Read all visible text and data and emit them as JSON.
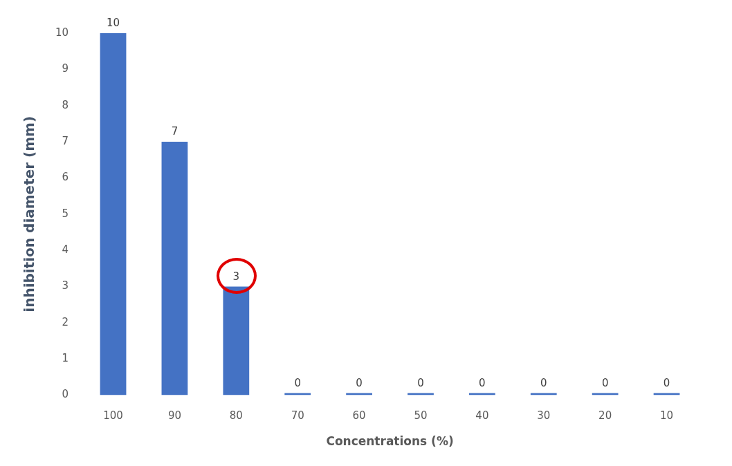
{
  "chart_data": {
    "type": "bar",
    "categories": [
      "100",
      "90",
      "80",
      "70",
      "60",
      "50",
      "40",
      "30",
      "20",
      "10"
    ],
    "values": [
      10,
      7,
      3,
      0,
      0,
      0,
      0,
      0,
      0,
      0
    ],
    "color": "#4472c4",
    "ylim": [
      0,
      10
    ],
    "yticks": [
      0,
      1,
      2,
      3,
      4,
      5,
      6,
      7,
      8,
      9,
      10
    ],
    "grid": false,
    "data_labels": true,
    "legend": false,
    "xlabel": "Concentrations (%)",
    "ylabel": "inhibition diameter (mm)"
  }
}
